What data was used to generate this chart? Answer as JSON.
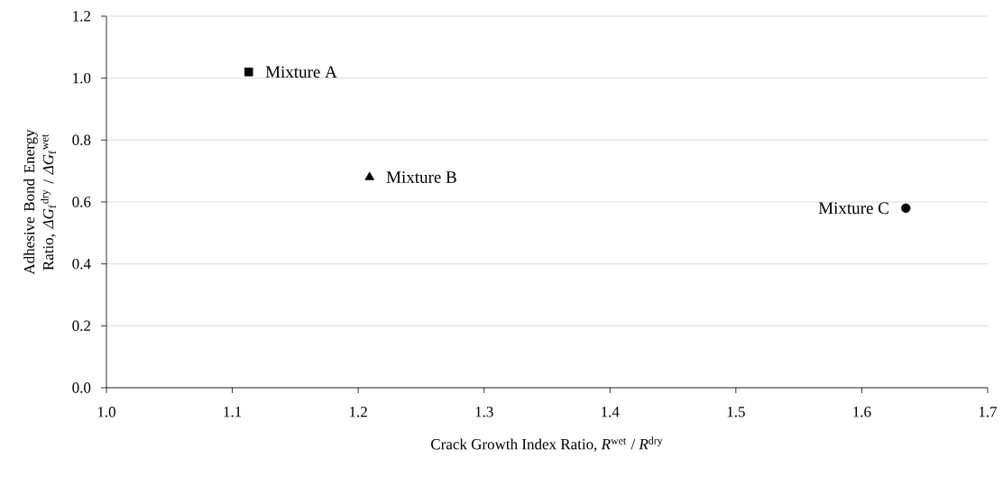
{
  "chart_data": {
    "type": "scatter",
    "xlabel": "Crack Growth Index Ratio, *R*$^{wet}$ / *R*$^{dry}$",
    "ylabel": "Adhesive Bond Energy Ratio, *ΔG*$_{f}$$^{dry}$ / *ΔG*$_{f}$$^{wet}$",
    "xlim": [
      1.0,
      1.7
    ],
    "ylim": [
      0.0,
      1.2
    ],
    "xticks": [
      {
        "value": 1.0,
        "label": "1.0"
      },
      1.1,
      1.2,
      1.3,
      1.4,
      1.5,
      1.6,
      1.7
    ],
    "yticks": [
      {
        "value": 0.0,
        "label": "0.0"
      },
      0.2,
      0.4,
      0.6,
      0.8,
      {
        "value": 1.0,
        "label": "1.0"
      },
      1.2
    ],
    "grid": "y",
    "legend": false,
    "series": [
      {
        "name": "Mixture A",
        "color": "#000000",
        "marker": "square",
        "x": [
          1.113
        ],
        "values": [
          1.02
        ]
      },
      {
        "name": "Mixture B",
        "color": "#000000",
        "marker": "triangle",
        "x": [
          1.209
        ],
        "values": [
          0.68
        ]
      },
      {
        "name": "Mixture C",
        "color": "#000000",
        "marker": "circle",
        "x": [
          1.635
        ],
        "values": [
          0.58
        ]
      }
    ]
  }
}
